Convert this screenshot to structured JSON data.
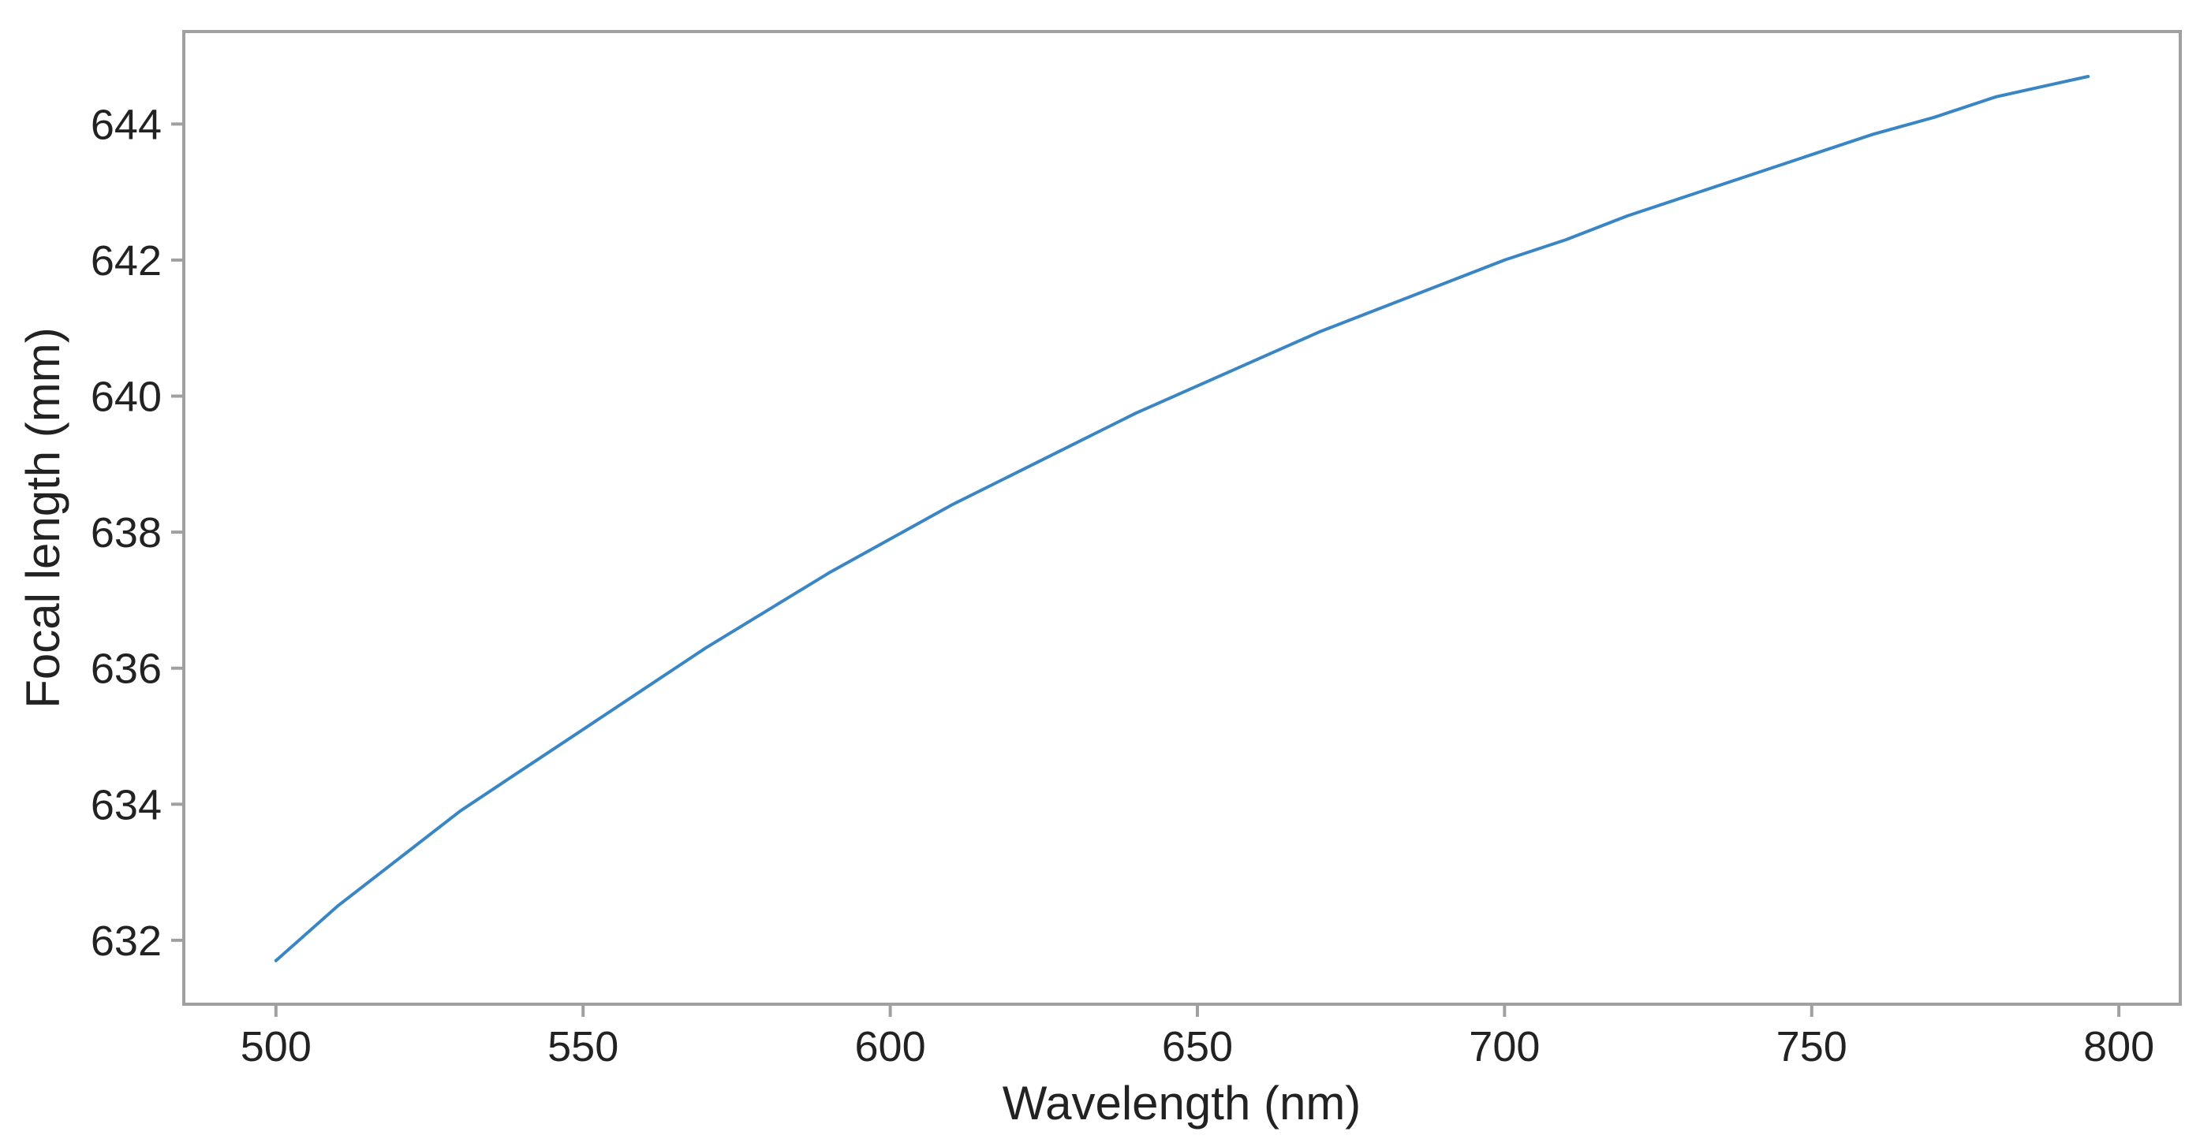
{
  "chart_data": {
    "type": "line",
    "title": "",
    "xlabel": "Wavelength (nm)",
    "ylabel": "Focal length (mm)",
    "xlim": [
      485,
      810
    ],
    "ylim": [
      631.06,
      645.36
    ],
    "x_ticks": [
      500,
      550,
      600,
      650,
      700,
      750,
      800
    ],
    "y_ticks": [
      632,
      634,
      636,
      638,
      640,
      642,
      644
    ],
    "x_tick_labels": [
      "500",
      "550",
      "600",
      "650",
      "700",
      "750",
      "800"
    ],
    "y_tick_labels": [
      "632",
      "634",
      "636",
      "638",
      "640",
      "642",
      "644"
    ],
    "grid": false,
    "legend": "none",
    "colors": {
      "line": "#3a86c4",
      "frame": "#a0a0a0",
      "text": "#222222"
    },
    "series": [
      {
        "x": [
          500,
          510,
          520,
          530,
          540,
          550,
          560,
          570,
          580,
          590,
          600,
          610,
          620,
          630,
          640,
          650,
          660,
          670,
          680,
          690,
          700,
          710,
          720,
          730,
          740,
          750,
          760,
          770,
          780,
          790,
          795
        ],
        "y": [
          631.7,
          632.5,
          633.2,
          633.9,
          634.5,
          635.1,
          635.7,
          636.3,
          636.85,
          637.4,
          637.9,
          638.4,
          638.85,
          639.3,
          639.75,
          640.15,
          640.55,
          640.95,
          641.3,
          641.65,
          642.0,
          642.3,
          642.65,
          642.95,
          643.25,
          643.55,
          643.85,
          644.1,
          644.4,
          644.6,
          644.7
        ]
      }
    ]
  }
}
